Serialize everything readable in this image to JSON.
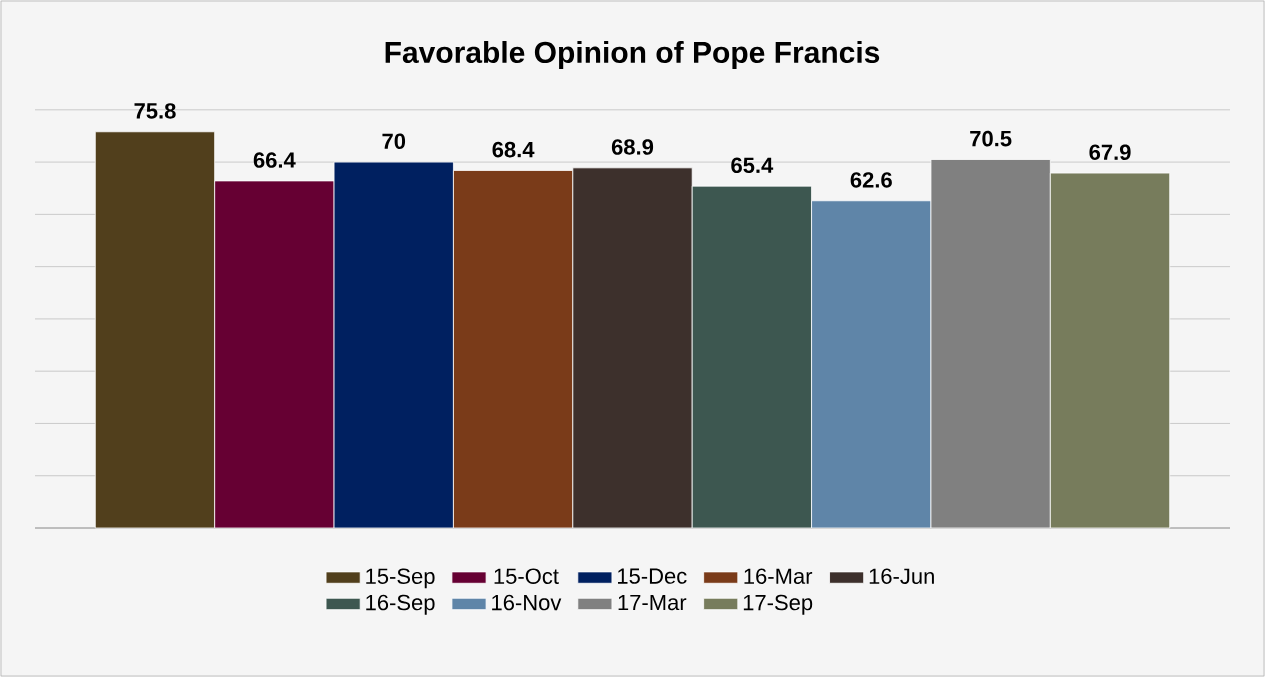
{
  "chart_data": {
    "type": "bar",
    "title": "Favorable Opinion of Pope Francis",
    "categories": [
      null
    ],
    "series": [
      {
        "name": "15-Sep",
        "color": "#513f1c",
        "values": [
          75.8
        ]
      },
      {
        "name": "15-Oct",
        "color": "#660033",
        "values": [
          66.4
        ]
      },
      {
        "name": "15-Dec",
        "color": "#002060",
        "values": [
          70
        ]
      },
      {
        "name": "16-Mar",
        "color": "#7a3b19",
        "values": [
          68.4
        ]
      },
      {
        "name": "16-Jun",
        "color": "#3d302c",
        "values": [
          68.9
        ]
      },
      {
        "name": "16-Sep",
        "color": "#3d5750",
        "values": [
          65.4
        ]
      },
      {
        "name": "16-Nov",
        "color": "#5f85a8",
        "values": [
          62.6
        ]
      },
      {
        "name": "17-Mar",
        "color": "#808080",
        "values": [
          70.5
        ]
      },
      {
        "name": "17-Sep",
        "color": "#777c5c",
        "values": [
          67.9
        ]
      }
    ],
    "tick_labels": false,
    "grid": "y",
    "data_labels": true,
    "legend": "bottom"
  }
}
